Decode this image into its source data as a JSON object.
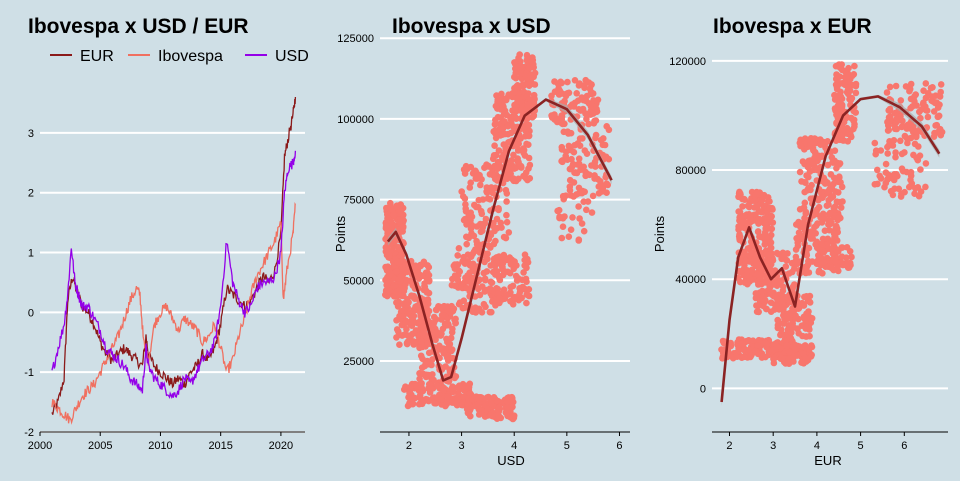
{
  "colors": {
    "background": "#cfdfe6",
    "eur": "#8b1a1a",
    "ibovespa": "#f07060",
    "usd": "#9400e8",
    "points": "#f8766d",
    "smooth": "#8b2323",
    "band": "#a9a9a9"
  },
  "chart_data": [
    {
      "type": "line",
      "title": "Ibovespa x USD / EUR",
      "xlabel": "",
      "ylabel": "",
      "xlim": [
        2000,
        2022
      ],
      "ylim": [
        -2,
        3.8
      ],
      "xticks": [
        "2000",
        "2005",
        "2010",
        "2015",
        "2020"
      ],
      "xtick_values": [
        2000,
        2005,
        2010,
        2015,
        2020
      ],
      "yticks": [
        "-2",
        "-1",
        "0",
        "1",
        "2",
        "3"
      ],
      "ytick_values": [
        -2,
        -1,
        0,
        1,
        2,
        3
      ],
      "legend": {
        "placement": "top",
        "entries": [
          "EUR",
          "Ibovespa",
          "USD"
        ]
      },
      "grid": "horizontal",
      "series": [
        {
          "name": "EUR",
          "x": [
            2001.0,
            2001.5,
            2002.0,
            2002.3,
            2002.7,
            2003.0,
            2003.5,
            2004.0,
            2004.5,
            2005.0,
            2005.5,
            2006.0,
            2006.5,
            2007.0,
            2007.5,
            2008.0,
            2008.5,
            2008.8,
            2009.0,
            2009.5,
            2010.0,
            2010.5,
            2011.0,
            2011.5,
            2012.0,
            2012.5,
            2013.0,
            2013.5,
            2014.0,
            2014.5,
            2015.0,
            2015.5,
            2016.0,
            2016.5,
            2017.0,
            2017.5,
            2018.0,
            2018.5,
            2019.0,
            2019.5,
            2020.0,
            2020.3,
            2020.6,
            2021.0,
            2021.2
          ],
          "y": [
            -1.7,
            -1.5,
            -1.1,
            0.2,
            0.6,
            0.4,
            0.1,
            0.0,
            -0.2,
            -0.5,
            -0.7,
            -0.8,
            -0.7,
            -0.6,
            -0.7,
            -0.8,
            -0.9,
            -0.4,
            -0.7,
            -0.9,
            -1.0,
            -1.1,
            -1.2,
            -1.1,
            -1.2,
            -1.0,
            -0.9,
            -0.7,
            -0.8,
            -0.6,
            -0.2,
            0.4,
            0.3,
            0.2,
            0.1,
            0.2,
            0.4,
            0.6,
            0.5,
            0.7,
            1.3,
            2.6,
            2.9,
            3.3,
            3.6
          ]
        },
        {
          "name": "Ibovespa",
          "x": [
            2001.0,
            2001.5,
            2002.0,
            2002.5,
            2003.0,
            2003.5,
            2004.0,
            2004.5,
            2005.0,
            2005.5,
            2006.0,
            2006.5,
            2007.0,
            2007.5,
            2008.0,
            2008.3,
            2008.6,
            2009.0,
            2009.5,
            2010.0,
            2010.5,
            2011.0,
            2011.5,
            2012.0,
            2012.5,
            2013.0,
            2013.5,
            2014.0,
            2014.5,
            2015.0,
            2015.5,
            2016.0,
            2016.5,
            2017.0,
            2017.5,
            2018.0,
            2018.5,
            2019.0,
            2019.5,
            2020.0,
            2020.2,
            2020.5,
            2021.0,
            2021.2
          ],
          "y": [
            -1.5,
            -1.6,
            -1.7,
            -1.8,
            -1.6,
            -1.4,
            -1.3,
            -1.2,
            -1.0,
            -0.8,
            -0.6,
            -0.4,
            -0.1,
            0.2,
            0.4,
            0.3,
            -0.5,
            -0.8,
            -0.2,
            0.0,
            0.1,
            -0.1,
            -0.3,
            -0.1,
            -0.2,
            -0.3,
            -0.5,
            -0.4,
            -0.2,
            -0.6,
            -1.0,
            -0.8,
            -0.4,
            -0.1,
            0.3,
            0.6,
            0.8,
            1.0,
            1.2,
            1.5,
            0.2,
            0.7,
            1.3,
            1.8
          ]
        },
        {
          "name": "USD",
          "x": [
            2001.0,
            2001.5,
            2002.0,
            2002.3,
            2002.6,
            2002.9,
            2003.2,
            2003.5,
            2004.0,
            2004.5,
            2005.0,
            2005.5,
            2006.0,
            2006.5,
            2007.0,
            2007.5,
            2008.0,
            2008.5,
            2008.8,
            2009.0,
            2009.5,
            2010.0,
            2010.5,
            2011.0,
            2011.5,
            2012.0,
            2012.5,
            2013.0,
            2013.5,
            2014.0,
            2014.5,
            2015.0,
            2015.5,
            2016.0,
            2016.5,
            2017.0,
            2017.5,
            2018.0,
            2018.5,
            2019.0,
            2019.5,
            2020.0,
            2020.3,
            2020.6,
            2021.0,
            2021.2
          ],
          "y": [
            -1.0,
            -0.6,
            -0.2,
            0.3,
            1.1,
            0.5,
            0.3,
            0.1,
            0.1,
            -0.1,
            -0.3,
            -0.6,
            -0.7,
            -0.8,
            -0.9,
            -1.1,
            -1.2,
            -1.3,
            -0.6,
            -0.9,
            -1.1,
            -1.2,
            -1.3,
            -1.4,
            -1.3,
            -1.1,
            -1.2,
            -1.0,
            -0.8,
            -0.7,
            -0.5,
            0.1,
            1.2,
            0.5,
            0.2,
            0.0,
            0.1,
            0.4,
            0.5,
            0.5,
            0.6,
            1.0,
            2.0,
            2.4,
            2.5,
            2.7
          ]
        }
      ]
    },
    {
      "type": "scatter",
      "title": "Ibovespa x USD",
      "xlabel": "USD",
      "ylabel": "Points",
      "xlim": [
        1.45,
        6.2
      ],
      "ylim": [
        3000,
        126000
      ],
      "xticks": [
        "2",
        "3",
        "4",
        "5",
        "6"
      ],
      "xtick_values": [
        2,
        3,
        4,
        5,
        6
      ],
      "yticks": [
        "25000",
        "50000",
        "75000",
        "100000",
        "125000"
      ],
      "ytick_values": [
        25000,
        50000,
        75000,
        100000,
        125000
      ],
      "grid": "horizontal",
      "clusters": [
        {
          "x": [
            1.55,
            1.9
          ],
          "y": [
            45000,
            74000
          ],
          "n": 260
        },
        {
          "x": [
            1.75,
            2.4
          ],
          "y": [
            30000,
            56000
          ],
          "n": 180
        },
        {
          "x": [
            2.2,
            2.9
          ],
          "y": [
            18000,
            42000
          ],
          "n": 160
        },
        {
          "x": [
            1.9,
            3.2
          ],
          "y": [
            11000,
            18000
          ],
          "n": 130
        },
        {
          "x": [
            3.1,
            4.0
          ],
          "y": [
            7000,
            14000
          ],
          "n": 130
        },
        {
          "x": [
            2.8,
            3.6
          ],
          "y": [
            40000,
            60000
          ],
          "n": 110
        },
        {
          "x": [
            3.6,
            4.3
          ],
          "y": [
            42000,
            58000
          ],
          "n": 90
        },
        {
          "x": [
            3.0,
            3.9
          ],
          "y": [
            60000,
            86000
          ],
          "n": 120
        },
        {
          "x": [
            3.6,
            4.3
          ],
          "y": [
            80000,
            108000
          ],
          "n": 170
        },
        {
          "x": [
            4.0,
            4.4
          ],
          "y": [
            100000,
            120000
          ],
          "n": 120
        },
        {
          "x": [
            4.7,
            5.6
          ],
          "y": [
            98000,
            112000
          ],
          "n": 90
        },
        {
          "x": [
            4.9,
            5.8
          ],
          "y": [
            76000,
            98000
          ],
          "n": 90
        },
        {
          "x": [
            4.8,
            5.5
          ],
          "y": [
            62000,
            78000
          ],
          "n": 25
        }
      ],
      "smooth": {
        "x": [
          1.6,
          1.75,
          1.95,
          2.2,
          2.45,
          2.65,
          2.8,
          3.0,
          3.3,
          3.6,
          3.9,
          4.2,
          4.6,
          5.0,
          5.4,
          5.85
        ],
        "y": [
          62000,
          65000,
          58000,
          45000,
          30000,
          19000,
          20000,
          32000,
          52000,
          72000,
          90000,
          101000,
          106000,
          103000,
          95000,
          81000
        ]
      }
    },
    {
      "type": "scatter",
      "title": "Ibovespa x EUR",
      "xlabel": "EUR",
      "ylabel": "Points",
      "xlim": [
        1.6,
        7.0
      ],
      "ylim": [
        -16000,
        124000
      ],
      "xticks": [
        "2",
        "3",
        "4",
        "5",
        "6"
      ],
      "xtick_values": [
        2,
        3,
        4,
        5,
        6
      ],
      "yticks": [
        "0",
        "40000",
        "80000",
        "120000"
      ],
      "ytick_values": [
        0,
        40000,
        80000,
        120000
      ],
      "grid": "horizontal",
      "clusters": [
        {
          "x": [
            1.8,
            3.5
          ],
          "y": [
            11000,
            18000
          ],
          "n": 150
        },
        {
          "x": [
            3.0,
            3.9
          ],
          "y": [
            9000,
            16000
          ],
          "n": 90
        },
        {
          "x": [
            2.2,
            3.0
          ],
          "y": [
            38000,
            72000
          ],
          "n": 220
        },
        {
          "x": [
            2.6,
            3.5
          ],
          "y": [
            28000,
            50000
          ],
          "n": 130
        },
        {
          "x": [
            3.1,
            3.9
          ],
          "y": [
            18000,
            34000
          ],
          "n": 90
        },
        {
          "x": [
            3.5,
            4.5
          ],
          "y": [
            42000,
            62000
          ],
          "n": 110
        },
        {
          "x": [
            4.0,
            4.8
          ],
          "y": [
            44000,
            52000
          ],
          "n": 40
        },
        {
          "x": [
            3.6,
            4.6
          ],
          "y": [
            62000,
            92000
          ],
          "n": 150
        },
        {
          "x": [
            4.4,
            4.9
          ],
          "y": [
            90000,
            119000
          ],
          "n": 120
        },
        {
          "x": [
            5.6,
            6.9
          ],
          "y": [
            92000,
            112000
          ],
          "n": 100
        },
        {
          "x": [
            5.3,
            6.5
          ],
          "y": [
            70000,
            95000
          ],
          "n": 70
        }
      ],
      "smooth": {
        "x": [
          1.82,
          2.0,
          2.2,
          2.45,
          2.7,
          2.95,
          3.2,
          3.5,
          3.8,
          4.2,
          4.6,
          5.0,
          5.4,
          5.9,
          6.4,
          6.8
        ],
        "y": [
          -5000,
          25000,
          48000,
          59000,
          48000,
          40000,
          44000,
          30000,
          60000,
          85000,
          100000,
          106000,
          107000,
          103000,
          96000,
          86000
        ]
      }
    }
  ]
}
